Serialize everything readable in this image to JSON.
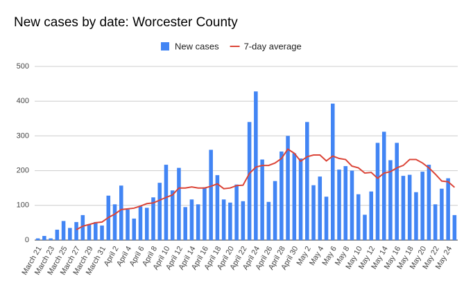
{
  "chart_data": {
    "type": "bar",
    "title": "New cases by date: Worcester County",
    "categories": [
      "March 21",
      null,
      "March 23",
      null,
      "March 25",
      null,
      "March 27",
      null,
      "March 29",
      null,
      "March 31",
      null,
      "April 2",
      null,
      "April 4",
      null,
      "April 6",
      null,
      "April 8",
      null,
      "April 10",
      null,
      "April 12",
      null,
      "April 14",
      null,
      "April 16",
      null,
      "April 18",
      null,
      "April 20",
      null,
      "April 22",
      null,
      "April 24",
      null,
      "April 26",
      null,
      "April 28",
      null,
      "April 30",
      null,
      "May 2",
      null,
      "May 4",
      null,
      "May 6",
      null,
      "May 8",
      null,
      "May 10",
      null,
      "May 12",
      null,
      "May 14",
      null,
      "May 16",
      null,
      "May 18",
      null,
      "May 20",
      null,
      "May 22",
      null,
      "May 24",
      null
    ],
    "series": [
      {
        "name": "New cases",
        "color": "#4285f4",
        "values": [
          5,
          12,
          5,
          30,
          55,
          35,
          52,
          72,
          45,
          52,
          42,
          128,
          103,
          157,
          88,
          62,
          97,
          93,
          123,
          165,
          217,
          143,
          208,
          95,
          117,
          103,
          152,
          260,
          187,
          117,
          108,
          160,
          112,
          340,
          428,
          232,
          110,
          170,
          255,
          300,
          250,
          235,
          340,
          158,
          183,
          125,
          393,
          203,
          213,
          200,
          132,
          73,
          140,
          280,
          312,
          230,
          280,
          185,
          188,
          138,
          197,
          217,
          103,
          148,
          178,
          72
        ]
      },
      {
        "name": "7-day average",
        "color": "#db4437",
        "type": "line",
        "values": [
          null,
          null,
          null,
          null,
          null,
          null,
          30,
          40,
          45,
          50,
          52,
          65,
          75,
          88,
          90,
          92,
          98,
          105,
          107,
          115,
          123,
          130,
          150,
          150,
          153,
          150,
          150,
          155,
          162,
          148,
          150,
          157,
          158,
          192,
          210,
          215,
          215,
          222,
          235,
          262,
          250,
          227,
          240,
          245,
          245,
          228,
          242,
          235,
          232,
          213,
          208,
          193,
          195,
          178,
          193,
          197,
          208,
          215,
          232,
          232,
          222,
          208,
          190,
          170,
          168,
          152
        ]
      }
    ],
    "ylim": [
      0,
      500
    ],
    "yticks": [
      0,
      100,
      200,
      300,
      400,
      500
    ],
    "grid": true,
    "legend": "top"
  }
}
